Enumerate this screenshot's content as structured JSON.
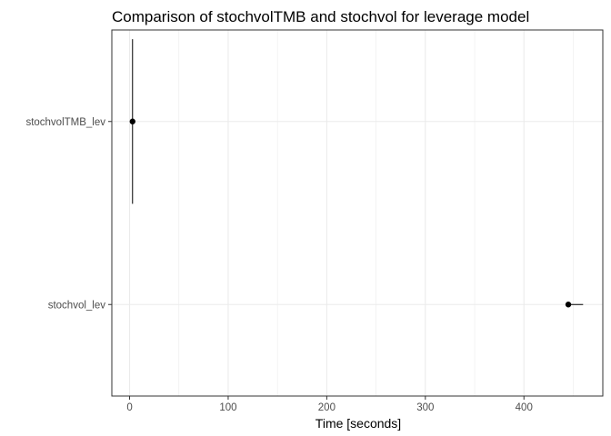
{
  "chart_data": {
    "type": "scatter",
    "title": "Comparison of stochvolTMB and stochvol for leverage model",
    "xlabel": "Time [seconds]",
    "ylabel": "",
    "xlim": [
      -18,
      480
    ],
    "x_ticks": [
      0,
      100,
      200,
      300,
      400
    ],
    "x_tick_labels": [
      "0",
      "100",
      "200",
      "300",
      "400"
    ],
    "grid": true,
    "categories": [
      "stochvolTMB_lev",
      "stochvol_lev"
    ],
    "points": [
      {
        "category": "stochvolTMB_lev",
        "x": 3,
        "error_range": "vertical",
        "extent_in_category_units": [
          -0.45,
          0.45
        ]
      },
      {
        "category": "stochvol_lev",
        "x": 445,
        "error_range": "horizontal",
        "x_range": [
          445,
          460
        ]
      }
    ],
    "colors": {
      "point": "#000000",
      "grid": "#ebebeb",
      "border": "#333333"
    }
  }
}
